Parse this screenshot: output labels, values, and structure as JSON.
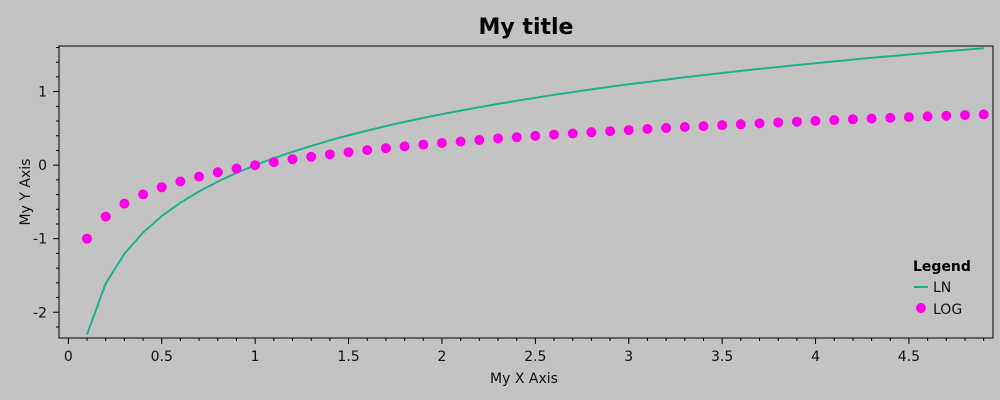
{
  "chart_data": {
    "type": "line",
    "title": "My title",
    "xlabel": "My X Axis",
    "ylabel": "My Y Axis",
    "xlim": [
      -0.05,
      4.95
    ],
    "ylim": [
      -2.35,
      1.62
    ],
    "x_ticks": [
      0,
      0.5,
      1,
      1.5,
      2,
      2.5,
      3,
      3.5,
      4,
      4.5
    ],
    "x_tick_labels": [
      "0",
      "0.5",
      "1",
      "1.5",
      "2",
      "2.5",
      "3",
      "3.5",
      "4",
      "4.5"
    ],
    "y_ticks": [
      -2,
      -1,
      0,
      1
    ],
    "y_tick_labels": [
      "-2",
      "-1",
      "0",
      "1"
    ],
    "legend": {
      "title": "Legend",
      "position": "bottom-right"
    },
    "grid": false,
    "series": [
      {
        "name": "LN",
        "kind": "line",
        "color": "#1fb18d",
        "x": [
          0.1,
          0.2,
          0.3,
          0.4,
          0.5,
          0.6,
          0.7,
          0.8,
          0.9,
          1.0,
          1.1,
          1.2,
          1.3,
          1.4,
          1.5,
          1.6,
          1.7,
          1.8,
          1.9,
          2.0,
          2.1,
          2.2,
          2.3,
          2.4,
          2.5,
          2.6,
          2.7,
          2.8,
          2.9,
          3.0,
          3.1,
          3.2,
          3.3,
          3.4,
          3.5,
          3.6,
          3.7,
          3.8,
          3.9,
          4.0,
          4.1,
          4.2,
          4.3,
          4.4,
          4.5,
          4.6,
          4.7,
          4.8,
          4.9
        ],
        "y": [
          -2.303,
          -1.609,
          -1.204,
          -0.916,
          -0.693,
          -0.511,
          -0.357,
          -0.223,
          -0.105,
          0.0,
          0.095,
          0.182,
          0.262,
          0.336,
          0.405,
          0.47,
          0.531,
          0.588,
          0.642,
          0.693,
          0.742,
          0.788,
          0.833,
          0.875,
          0.916,
          0.956,
          0.993,
          1.03,
          1.065,
          1.099,
          1.131,
          1.163,
          1.194,
          1.224,
          1.253,
          1.281,
          1.308,
          1.335,
          1.361,
          1.386,
          1.411,
          1.435,
          1.459,
          1.482,
          1.504,
          1.526,
          1.548,
          1.569,
          1.589
        ]
      },
      {
        "name": "LOG",
        "kind": "scatter",
        "color": "#ff00e6",
        "x": [
          0.1,
          0.2,
          0.3,
          0.4,
          0.5,
          0.6,
          0.7,
          0.8,
          0.9,
          1.0,
          1.1,
          1.2,
          1.3,
          1.4,
          1.5,
          1.6,
          1.7,
          1.8,
          1.9,
          2.0,
          2.1,
          2.2,
          2.3,
          2.4,
          2.5,
          2.6,
          2.7,
          2.8,
          2.9,
          3.0,
          3.1,
          3.2,
          3.3,
          3.4,
          3.5,
          3.6,
          3.7,
          3.8,
          3.9,
          4.0,
          4.1,
          4.2,
          4.3,
          4.4,
          4.5,
          4.6,
          4.7,
          4.8,
          4.9
        ],
        "y": [
          -1.0,
          -0.699,
          -0.523,
          -0.398,
          -0.301,
          -0.222,
          -0.155,
          -0.097,
          -0.046,
          0.0,
          0.041,
          0.079,
          0.114,
          0.146,
          0.176,
          0.204,
          0.23,
          0.255,
          0.279,
          0.301,
          0.322,
          0.342,
          0.362,
          0.38,
          0.398,
          0.415,
          0.431,
          0.447,
          0.462,
          0.477,
          0.491,
          0.505,
          0.519,
          0.531,
          0.544,
          0.556,
          0.568,
          0.58,
          0.591,
          0.602,
          0.613,
          0.623,
          0.633,
          0.643,
          0.653,
          0.663,
          0.672,
          0.681,
          0.69
        ]
      }
    ]
  }
}
